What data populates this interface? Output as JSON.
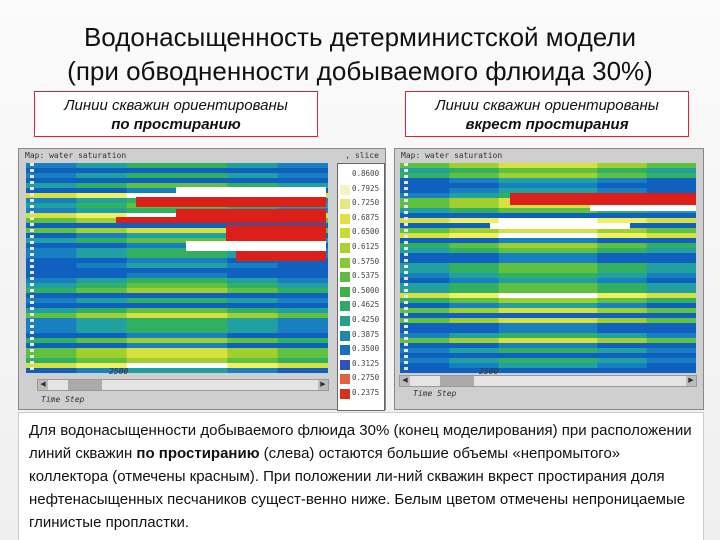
{
  "slide": {
    "title_line1": "Водонасыщенность детерминистской модели",
    "title_line2": "(при обводненности добываемого флюида 30%)",
    "left_caption": {
      "line1": "Линии скважин ориентированы",
      "line2": "по простиранию"
    },
    "right_caption": {
      "line1": "Линии скважин ориентированы",
      "line2": "вкрест простирания"
    },
    "description": {
      "part1": "Для водонасыщенности добываемого флюида 30% (конец моделирования) при расположении линий скважин ",
      "bold": "по простиранию",
      "part2": " (слева) остаются большие объемы «непромытого» коллектора (отмечены красным). При положении ли-ний скважин вкрест простирания доля нефтенасыщенных песчаников сущест-венно ниже. Белым цветом отмечены непроницаемые глинистые пропластки."
    }
  },
  "left_panel": {
    "title": "Map: water saturation",
    "title_right": ", slice",
    "step_value": "2500",
    "step_label": "Time Step",
    "scroll_left": "◀",
    "scroll_right": "▶"
  },
  "right_panel": {
    "title": "Map: water saturation",
    "step_value": "2500",
    "step_label": "Time Step",
    "scroll_left": "◀",
    "scroll_right": "▶"
  },
  "legend": {
    "values": [
      "0.8600",
      "0.7925",
      "0.7250",
      "0.6875",
      "0.6500",
      "0.6125",
      "0.5750",
      "0.5375",
      "0.5000",
      "0.4625",
      "0.4250",
      "0.3875",
      "0.3500",
      "0.3125",
      "0.2750",
      "0.2375"
    ],
    "colors": [
      "#ffffff",
      "#f4f4c0",
      "#e8e880",
      "#e0e040",
      "#c8dc30",
      "#a8d030",
      "#88c838",
      "#60bc40",
      "#40b048",
      "#30a868",
      "#28a088",
      "#2088a8",
      "#1870b8",
      "#3050c0",
      "#e06040",
      "#d83020"
    ]
  },
  "colors": {
    "accent_border": "#dd2233",
    "unswept": "#dd1f1a",
    "shale": "#ffffff"
  }
}
